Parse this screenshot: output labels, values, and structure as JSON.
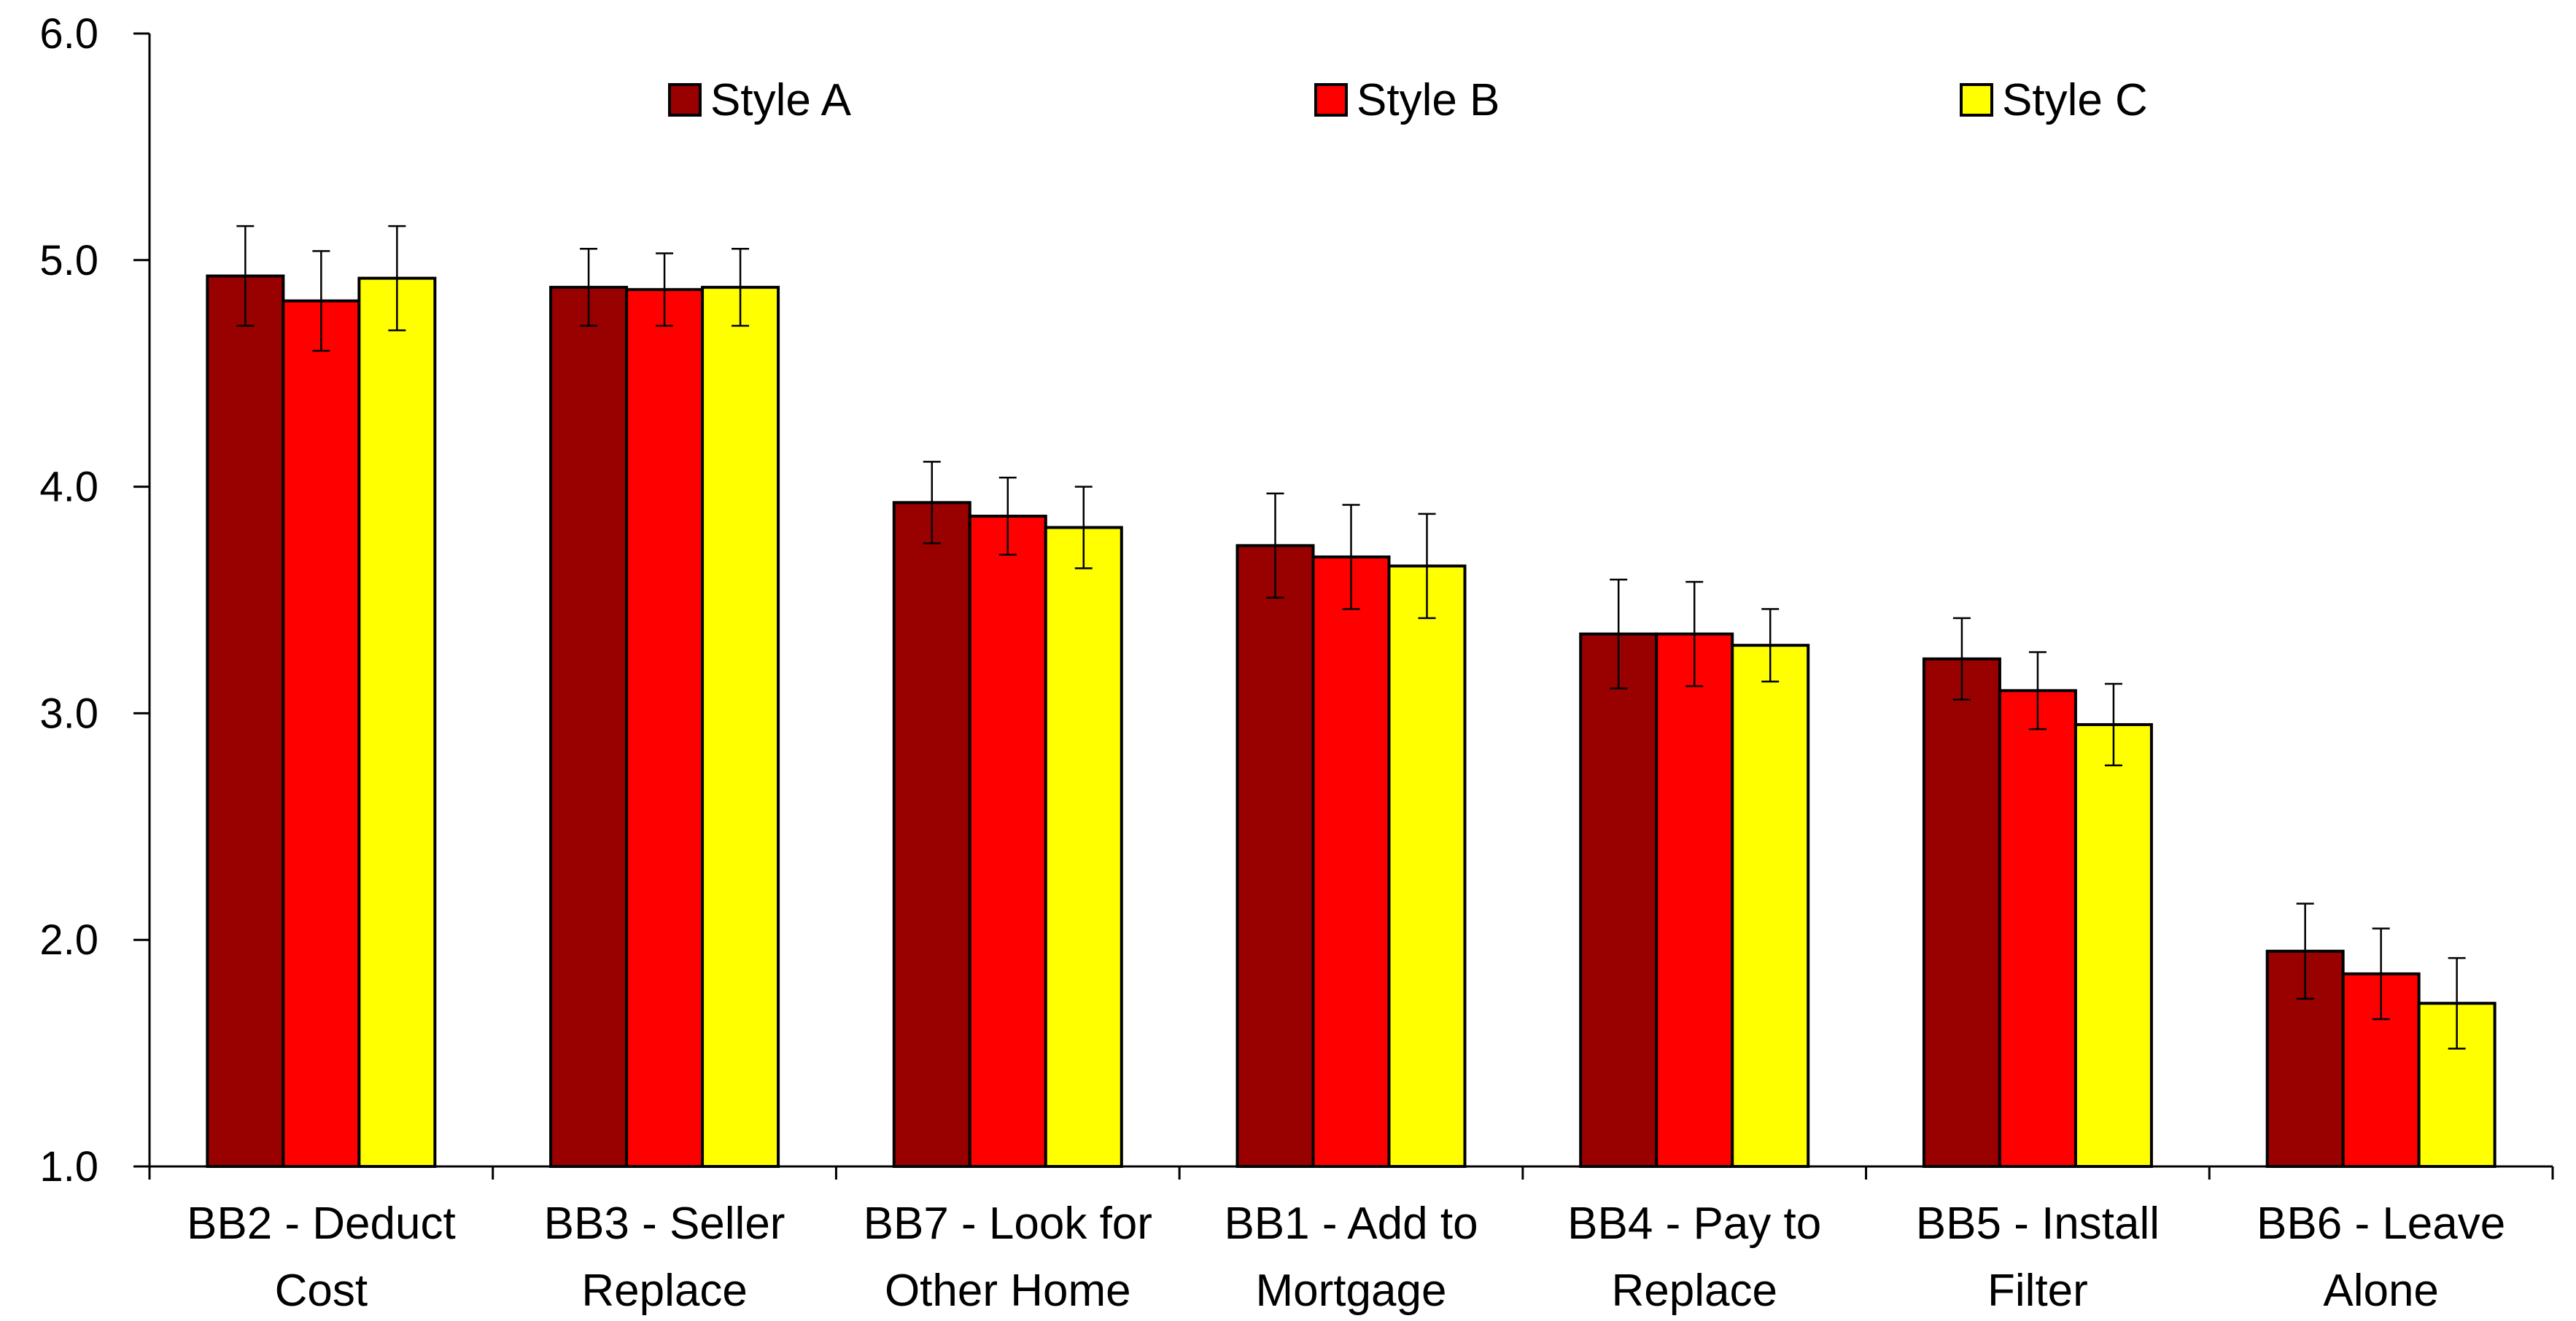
{
  "chart_data": {
    "type": "bar",
    "title": "",
    "xlabel": "",
    "ylabel": "",
    "ylim": [
      1.0,
      6.0
    ],
    "yticks": [
      "1.0",
      "2.0",
      "3.0",
      "4.0",
      "5.0",
      "6.0"
    ],
    "grid": false,
    "legend_position": "top",
    "categories": [
      [
        "BB2 - Deduct",
        "Cost"
      ],
      [
        "BB3 - Seller",
        "Replace"
      ],
      [
        "BB7 - Look for",
        "Other Home"
      ],
      [
        "BB1 - Add to",
        "Mortgage"
      ],
      [
        "BB4 - Pay to",
        "Replace"
      ],
      [
        "BB5 - Install",
        "Filter"
      ],
      [
        "BB6 - Leave",
        "Alone"
      ]
    ],
    "series": [
      {
        "name": "Style A",
        "color": "#990000",
        "values": [
          4.93,
          4.88,
          3.93,
          3.74,
          3.35,
          3.24,
          1.95
        ],
        "error": [
          0.22,
          0.17,
          0.18,
          0.23,
          0.24,
          0.18,
          0.21
        ]
      },
      {
        "name": "Style B",
        "color": "#ff0000",
        "values": [
          4.82,
          4.87,
          3.87,
          3.69,
          3.35,
          3.1,
          1.85
        ],
        "error": [
          0.22,
          0.16,
          0.17,
          0.23,
          0.23,
          0.17,
          0.2
        ]
      },
      {
        "name": "Style C",
        "color": "#ffff00",
        "values": [
          4.92,
          4.88,
          3.82,
          3.65,
          3.3,
          2.95,
          1.72
        ],
        "error": [
          0.23,
          0.17,
          0.18,
          0.23,
          0.16,
          0.18,
          0.2
        ]
      }
    ]
  }
}
